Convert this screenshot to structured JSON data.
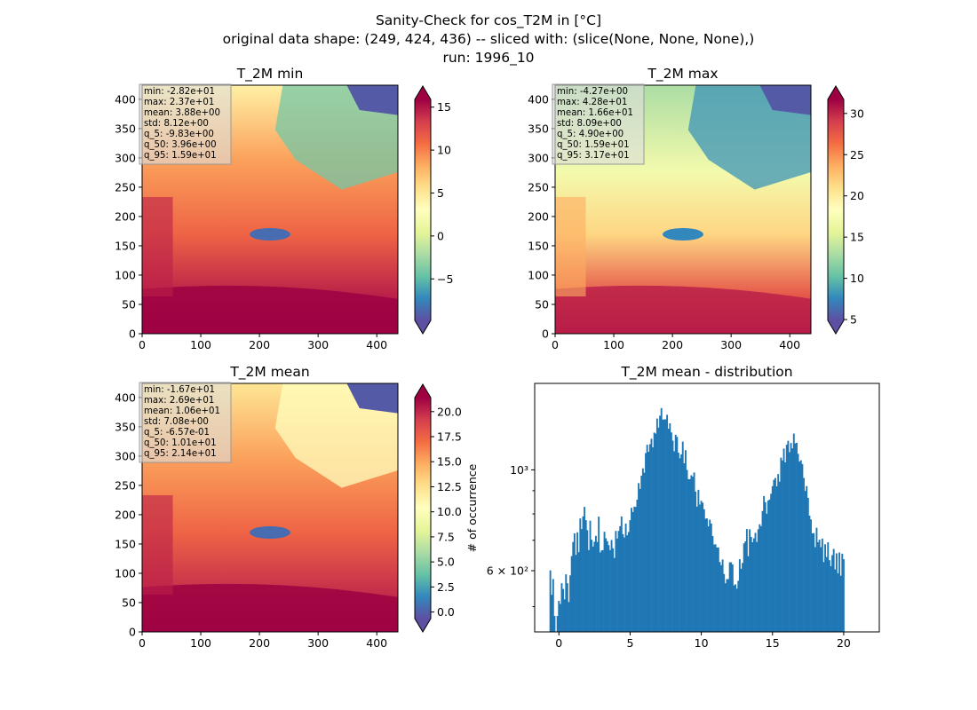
{
  "figure": {
    "title_line1": "Sanity-Check for cos_T2M in [°C]",
    "title_line2": "original data shape: (249, 424, 436) -- sliced with: (slice(None, None, None),)",
    "title_line3": "run: 1996_10"
  },
  "chart_data": [
    {
      "type": "heatmap",
      "title": "T_2M min",
      "xlim": [
        0,
        436
      ],
      "ylim": [
        0,
        424
      ],
      "x_ticks": [
        0,
        100,
        200,
        300,
        400
      ],
      "y_ticks": [
        0,
        50,
        100,
        150,
        200,
        250,
        300,
        350,
        400
      ],
      "colormap": "Spectral_r",
      "colorbar": {
        "min": -9.83,
        "max": 15.9,
        "ticks": [
          -5,
          0,
          5,
          10,
          15
        ],
        "tick_labels": [
          "−5",
          "0",
          "5",
          "10",
          "15"
        ],
        "extend": "both",
        "label": ""
      },
      "stats": [
        "min: -2.82e+01",
        "max: 2.37e+01",
        "mean: 3.88e+00",
        "std: 8.12e+00",
        "q_5: -9.83e+00",
        "q_50: 3.96e+00",
        "q_95: 1.59e+01"
      ]
    },
    {
      "type": "heatmap",
      "title": "T_2M max",
      "xlim": [
        0,
        436
      ],
      "ylim": [
        0,
        424
      ],
      "x_ticks": [
        0,
        100,
        200,
        300,
        400
      ],
      "y_ticks": [
        0,
        50,
        100,
        150,
        200,
        250,
        300,
        350,
        400
      ],
      "colormap": "Spectral_r",
      "colorbar": {
        "min": 4.9,
        "max": 31.7,
        "ticks": [
          5,
          10,
          15,
          20,
          25,
          30
        ],
        "tick_labels": [
          "5",
          "10",
          "15",
          "20",
          "25",
          "30"
        ],
        "extend": "both",
        "label": ""
      },
      "stats": [
        "min: -4.27e+00",
        "max: 4.28e+01",
        "mean: 1.66e+01",
        "std: 8.09e+00",
        "q_5: 4.90e+00",
        "q_50: 1.59e+01",
        "q_95: 3.17e+01"
      ]
    },
    {
      "type": "heatmap",
      "title": "T_2M mean",
      "xlim": [
        0,
        436
      ],
      "ylim": [
        0,
        424
      ],
      "x_ticks": [
        0,
        100,
        200,
        300,
        400
      ],
      "y_ticks": [
        0,
        50,
        100,
        150,
        200,
        250,
        300,
        350,
        400
      ],
      "colormap": "Spectral_r",
      "colorbar": {
        "min": -0.657,
        "max": 21.4,
        "ticks": [
          0,
          2.5,
          5,
          7.5,
          10,
          12.5,
          15,
          17.5,
          20
        ],
        "tick_labels": [
          "0.0",
          "2.5",
          "5.0",
          "7.5",
          "10.0",
          "12.5",
          "15.0",
          "17.5",
          "20.0"
        ],
        "extend": "both",
        "label": "# of occurrence"
      },
      "stats": [
        "min: -1.67e+01",
        "max: 2.69e+01",
        "mean: 1.06e+01",
        "std: 7.08e+00",
        "q_5: -6.57e-01",
        "q_50: 1.01e+01",
        "q_95: 2.14e+01"
      ]
    },
    {
      "type": "bar",
      "title": "T_2M mean - distribution",
      "xlabel": "",
      "ylabel": "",
      "color": "#1f77b4",
      "yscale": "log",
      "xlim": [
        -1.7,
        22.5
      ],
      "ylim": [
        440,
        1550
      ],
      "x_ticks": [
        0,
        5,
        10,
        15,
        20
      ],
      "y_ticks": [
        1000,
        600
      ],
      "y_tick_labels": [
        "10³",
        "6 × 10²"
      ],
      "bin_start": -0.66,
      "bin_width": 0.1,
      "values": [
        601,
        531,
        575,
        477,
        436,
        477,
        515,
        507,
        563,
        547,
        519,
        589,
        563,
        512,
        586,
        646,
        694,
        725,
        650,
        729,
        659,
        782,
        741,
        790,
        829,
        775,
        737,
        666,
        773,
        702,
        678,
        695,
        716,
        694,
        789,
        658,
        665,
        666,
        731,
        707,
        697,
        683,
        666,
        701,
        672,
        640,
        734,
        706,
        734,
        752,
        790,
        722,
        710,
        762,
        718,
        730,
        775,
        825,
        808,
        830,
        829,
        860,
        935,
        908,
        971,
        1008,
        986,
        1089,
        1136,
        1096,
        1139,
        1171,
        1121,
        1208,
        1202,
        1297,
        1239,
        1316,
        1368,
        1290,
        1292,
        1292,
        1322,
        1232,
        1266,
        1209,
        1160,
        1099,
        1195,
        1182,
        1091,
        1061,
        1082,
        1154,
        1034,
        1105,
        1000,
        954,
        954,
        973,
        966,
        987,
        896,
        830,
        904,
        839,
        855,
        847,
        819,
        781,
        782,
        751,
        777,
        762,
        715,
        685,
        686,
        675,
        675,
        627,
        617,
        635,
        590,
        563,
        575,
        575,
        626,
        626,
        619,
        557,
        560,
        548,
        570,
        636,
        606,
        624,
        689,
        696,
        741,
        646,
        740,
        712,
        693,
        707,
        727,
        694,
        740,
        759,
        752,
        812,
        876,
        849,
        801,
        856,
        861,
        886,
        921,
        951,
        960,
        920,
        979,
        942,
        1064,
        1049,
        1114,
        1039,
        1136,
        1159,
        1094,
        1146,
        1115,
        1202,
        1144,
        1147,
        1085,
        1043,
        1050,
        1030,
        960,
        899,
        921,
        868,
        793,
        778,
        725,
        726,
        676,
        746,
        693,
        702,
        676,
        706,
        627,
        686,
        643,
        693,
        633,
        614,
        649,
        670,
        604,
        655,
        592,
        658,
        585,
        654,
        636
      ]
    }
  ]
}
